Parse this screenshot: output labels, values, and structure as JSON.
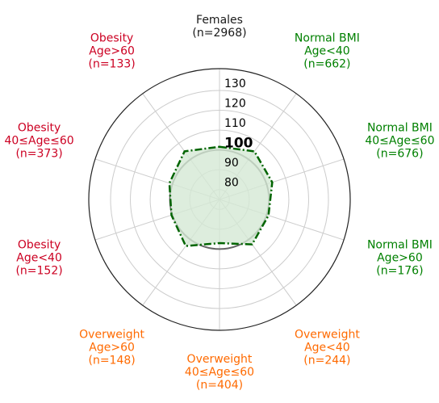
{
  "chart_data": {
    "type": "radar",
    "categories": [
      {
        "lines": [
          "Females",
          "(n=2968)"
        ],
        "color": "#1a1a1a"
      },
      {
        "lines": [
          "Normal BMI",
          "Age<40",
          "(n=662)"
        ],
        "color": "#008000"
      },
      {
        "lines": [
          "Normal BMI",
          "40≤Age≤60",
          "(n=676)"
        ],
        "color": "#008000"
      },
      {
        "lines": [
          "Normal BMI",
          "Age>60",
          "(n=176)"
        ],
        "color": "#008000"
      },
      {
        "lines": [
          "Overweight",
          "Age<40",
          "(n=244)"
        ],
        "color": "#ff6a00"
      },
      {
        "lines": [
          "Overweight",
          "40≤Age≤60",
          "(n=404)"
        ],
        "color": "#ff6a00"
      },
      {
        "lines": [
          "Overweight",
          "Age>60",
          "(n=148)"
        ],
        "color": "#ff6a00"
      },
      {
        "lines": [
          "Obesity",
          "Age<40",
          "(n=152)"
        ],
        "color": "#cc0022"
      },
      {
        "lines": [
          "Obesity",
          "40≤Age≤60",
          "(n=373)"
        ],
        "color": "#cc0022"
      },
      {
        "lines": [
          "Obesity",
          "Age>60",
          "(n=133)"
        ],
        "color": "#cc0022"
      }
    ],
    "values": [
      101.6,
      105,
      103,
      101,
      103,
      97,
      104,
      100.5,
      101.6,
      105
    ],
    "color": "#006400",
    "fill": "#d5e8d4",
    "ylim": [
      75,
      141
    ],
    "yticks": [
      80,
      90,
      100,
      110,
      120,
      130
    ],
    "reference_value": 100,
    "grid": true
  }
}
